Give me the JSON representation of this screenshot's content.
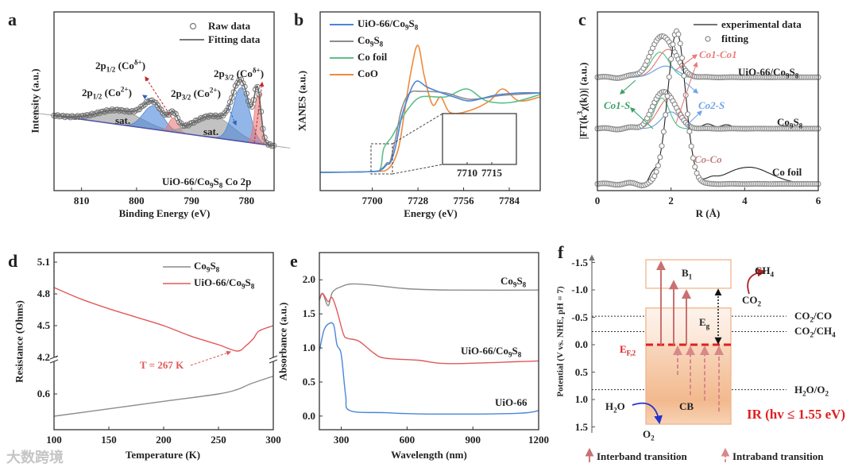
{
  "watermark": "大数跨境",
  "colors": {
    "blue": "#4a86d8",
    "gray": "#8c8c8c",
    "green": "#5cbf8a",
    "orange": "#ee8a3c",
    "red": "#e05a5a",
    "fit_gray": "#777777"
  },
  "chart_data": [
    {
      "panel": "a",
      "type": "line",
      "xlabel": "Binding Energy (eV)",
      "ylabel": "Intensity (a.u.)",
      "xlim": [
        815,
        775
      ],
      "ylim": [
        0,
        1
      ],
      "xticks": [
        "810",
        "800",
        "790",
        "780"
      ],
      "xtick_values": [
        810,
        800,
        790,
        780
      ],
      "legend": [
        "Raw data",
        "Fitting data"
      ],
      "annotation": "UiO-66/Co_{9}S_{8}  Co 2p",
      "baseline": [
        [
          815,
          0.42
        ],
        [
          775,
          0.25
        ]
      ],
      "peaks": [
        {
          "label": "sat.",
          "center": 803,
          "height": 0.08,
          "width": 4,
          "color": "#9a9a9a"
        },
        {
          "label": "2p_{1/2} (Co^{2+})",
          "center": 797,
          "height": 0.13,
          "width": 1.8,
          "color": "#4a86d8"
        },
        {
          "label": "2p_{1/2} (Co^{δ+})",
          "center": 793.3,
          "height": 0.08,
          "width": 0.8,
          "color": "#e87c7c"
        },
        {
          "label": "sat.",
          "center": 786,
          "height": 0.12,
          "width": 3.5,
          "color": "#9a9a9a"
        },
        {
          "label": "2p_{3/2} (Co^{2+})",
          "center": 781,
          "height": 0.3,
          "width": 1.5,
          "color": "#4a86d8"
        },
        {
          "label": "2p_{3/2} (Co^{δ+})",
          "center": 778,
          "height": 0.27,
          "width": 0.6,
          "color": "#e87c7c"
        }
      ]
    },
    {
      "panel": "b",
      "type": "line",
      "xlabel": "Energy (eV)",
      "ylabel": "XANES (a.u.)",
      "xlim": [
        7668,
        7803
      ],
      "ylim": [
        -0.23,
        2.02
      ],
      "xticks": [
        "7700",
        "7728",
        "7756",
        "7784"
      ],
      "xtick_values": [
        7700,
        7728,
        7756,
        7784
      ],
      "inset": {
        "xlim": [
          7705,
          7720
        ],
        "xticks": [
          "7710",
          "7715"
        ],
        "xtick_values": [
          7710,
          7715
        ]
      },
      "series": [
        {
          "name": "UiO-66/Co_{9}S_{8}",
          "color": "#4a86d8",
          "points": [
            [
              7668,
              0
            ],
            [
              7700,
              0.01
            ],
            [
              7706,
              0.04
            ],
            [
              7709,
              0.1
            ],
            [
              7711,
              0.12
            ],
            [
              7714,
              0.3
            ],
            [
              7718,
              0.7
            ],
            [
              7722,
              0.95
            ],
            [
              7725,
              1.1
            ],
            [
              7728,
              1.15
            ],
            [
              7733,
              1.08
            ],
            [
              7740,
              1.02
            ],
            [
              7750,
              0.95
            ],
            [
              7760,
              0.9
            ],
            [
              7775,
              0.97
            ],
            [
              7790,
              1.0
            ],
            [
              7803,
              1.0
            ]
          ]
        },
        {
          "name": "Co_{9}S_{8}",
          "color": "#8c8c8c",
          "points": [
            [
              7668,
              0
            ],
            [
              7700,
              0.01
            ],
            [
              7706,
              0.05
            ],
            [
              7709,
              0.12
            ],
            [
              7711,
              0.14
            ],
            [
              7714,
              0.4
            ],
            [
              7718,
              0.8
            ],
            [
              7723,
              1.0
            ],
            [
              7730,
              1.02
            ],
            [
              7745,
              1.0
            ],
            [
              7760,
              0.92
            ],
            [
              7780,
              0.97
            ],
            [
              7803,
              1.0
            ]
          ]
        },
        {
          "name": "Co foil",
          "color": "#5cbf8a",
          "points": [
            [
              7668,
              0
            ],
            [
              7700,
              0.01
            ],
            [
              7705,
              0.05
            ],
            [
              7707,
              0.3
            ],
            [
              7712,
              0.45
            ],
            [
              7716,
              0.6
            ],
            [
              7722,
              0.8
            ],
            [
              7730,
              0.95
            ],
            [
              7745,
              0.95
            ],
            [
              7758,
              1.05
            ],
            [
              7770,
              0.9
            ],
            [
              7785,
              0.88
            ],
            [
              7803,
              0.98
            ]
          ]
        },
        {
          "name": "CoO",
          "color": "#ee8a3c",
          "points": [
            [
              7668,
              0
            ],
            [
              7700,
              0.01
            ],
            [
              7710,
              0.05
            ],
            [
              7716,
              0.3
            ],
            [
              7720,
              0.8
            ],
            [
              7724,
              1.3
            ],
            [
              7728,
              1.6
            ],
            [
              7732,
              1.2
            ],
            [
              7737,
              0.85
            ],
            [
              7742,
              0.95
            ],
            [
              7748,
              0.75
            ],
            [
              7760,
              0.78
            ],
            [
              7772,
              0.9
            ],
            [
              7780,
              1.05
            ],
            [
              7790,
              0.9
            ],
            [
              7803,
              0.95
            ]
          ]
        }
      ]
    },
    {
      "panel": "c",
      "type": "line",
      "xlabel": "R (Å)",
      "ylabel": "|FT(k^{3}χ(k))| (a.u.)",
      "xlim": [
        0,
        6
      ],
      "ylim": [
        0,
        3.2
      ],
      "xticks": [
        "0",
        "2",
        "4",
        "6"
      ],
      "xtick_values": [
        0,
        2,
        4,
        6
      ],
      "legend": [
        "experimental data",
        "fitting"
      ],
      "path_labels": {
        "co1_co1": "Co1-Co1",
        "co1_s": "Co1-S",
        "co2_s": "Co2-S",
        "co_co": "Co-Co"
      },
      "samples": [
        {
          "name": "UiO-66/Co_{9}S_{8}",
          "offset": 2.03,
          "peak": {
            "center": 1.78,
            "height": 0.74,
            "width": 0.32
          },
          "components": [
            {
              "path": "Co1-S",
              "color": "#5cbf8a",
              "center": 1.7,
              "height": 0.45,
              "width": 0.25
            },
            {
              "path": "Co1-Co1",
              "color": "#e87c7c",
              "center": 1.92,
              "height": 0.5,
              "width": 0.3
            },
            {
              "path": "Co2-S",
              "color": "#6fa3e8",
              "center": 1.85,
              "height": 0.2,
              "width": 0.3
            }
          ],
          "extra": [
            [
              3.6,
              0.03,
              0.2
            ]
          ]
        },
        {
          "name": "Co_{9}S_{8}",
          "offset": 1.11,
          "peak": {
            "center": 1.82,
            "height": 0.67,
            "width": 0.3
          },
          "components": [
            {
              "path": "Co1-S",
              "color": "#5cbf8a",
              "center": 1.75,
              "height": 0.55,
              "width": 0.2
            },
            {
              "path": "Co1-Co1",
              "color": "#e87c7c",
              "center": 1.95,
              "height": 0.55,
              "width": 0.3
            },
            {
              "path": "Co2-S",
              "color": "#6fa3e8",
              "center": 2.0,
              "height": 0.3,
              "width": 0.25
            }
          ],
          "extra": [
            [
              3.0,
              0.08,
              0.15
            ],
            [
              3.5,
              0.07,
              0.15
            ],
            [
              5.1,
              0.05,
              0.2
            ]
          ]
        },
        {
          "name": "Co foil",
          "offset": 0.12,
          "peak": {
            "center": 2.15,
            "height": 2.73,
            "width": 0.24
          },
          "components": [],
          "extra": [
            [
              1.5,
              0.15,
              0.1
            ],
            [
              3.1,
              0.06,
              0.15
            ],
            [
              4.1,
              0.3,
              0.6
            ]
          ]
        }
      ]
    },
    {
      "panel": "d",
      "type": "line",
      "xlabel": "Temperature (K)",
      "ylabel": "Resistance (Ohms)",
      "xlim": [
        100,
        300
      ],
      "xticks": [
        "100",
        "150",
        "200",
        "250",
        "300"
      ],
      "xtick_values": [
        100,
        150,
        200,
        250,
        300
      ],
      "yticks": [
        "5.1",
        "4.8",
        "4.5",
        "4.2",
        "0.6"
      ],
      "ytick_values": [
        5.1,
        4.8,
        4.5,
        4.2,
        0.6
      ],
      "axis_break": true,
      "annotation": "T = 267 K",
      "series": [
        {
          "name": "Co_{9}S_{8}",
          "color": "#8c8c8c",
          "points": [
            [
              100,
              0.45
            ],
            [
              150,
              0.5
            ],
            [
              200,
              0.55
            ],
            [
              250,
              0.6
            ],
            [
              267,
              0.63
            ],
            [
              280,
              0.67
            ],
            [
              300,
              0.72
            ]
          ]
        },
        {
          "name": "UiO-66/Co_{9}S_{8}",
          "color": "#e05a5a",
          "points": [
            [
              100,
              4.86
            ],
            [
              125,
              4.75
            ],
            [
              150,
              4.66
            ],
            [
              175,
              4.58
            ],
            [
              200,
              4.5
            ],
            [
              225,
              4.4
            ],
            [
              250,
              4.32
            ],
            [
              267,
              4.26
            ],
            [
              275,
              4.31
            ],
            [
              282,
              4.38
            ],
            [
              287,
              4.45
            ],
            [
              300,
              4.5
            ]
          ]
        }
      ]
    },
    {
      "panel": "e",
      "type": "line",
      "xlabel": "Wavelength (nm)",
      "ylabel": "Absorbance (a.u.)",
      "xlim": [
        200,
        1200
      ],
      "ylim": [
        -0.2,
        2.4
      ],
      "xticks": [
        "300",
        "600",
        "900",
        "1200"
      ],
      "xtick_values": [
        300,
        600,
        900,
        1200
      ],
      "yticks": [
        "2.0",
        "1.5",
        "1.0",
        "0.5",
        "0.0"
      ],
      "ytick_values": [
        2.0,
        1.5,
        1.0,
        0.5,
        0.0
      ],
      "series": [
        {
          "name": "Co_{9}S_{8}",
          "color": "#8c8c8c",
          "points": [
            [
              200,
              1.72
            ],
            [
              215,
              1.8
            ],
            [
              240,
              1.62
            ],
            [
              260,
              1.82
            ],
            [
              300,
              1.9
            ],
            [
              350,
              1.94
            ],
            [
              450,
              1.92
            ],
            [
              600,
              1.87
            ],
            [
              800,
              1.85
            ],
            [
              1200,
              1.85
            ]
          ]
        },
        {
          "name": "UiO-66/Co_{9}S_{8}",
          "color": "#e05a5a",
          "points": [
            [
              200,
              1.7
            ],
            [
              215,
              1.8
            ],
            [
              240,
              1.68
            ],
            [
              258,
              1.74
            ],
            [
              280,
              1.55
            ],
            [
              310,
              1.2
            ],
            [
              330,
              1.14
            ],
            [
              380,
              1.1
            ],
            [
              450,
              0.92
            ],
            [
              500,
              0.85
            ],
            [
              650,
              0.82
            ],
            [
              800,
              0.77
            ],
            [
              1200,
              0.81
            ]
          ]
        },
        {
          "name": "UiO-66",
          "color": "#4a86d8",
          "points": [
            [
              200,
              0.95
            ],
            [
              220,
              1.25
            ],
            [
              240,
              1.35
            ],
            [
              265,
              1.34
            ],
            [
              280,
              1.05
            ],
            [
              300,
              0.9
            ],
            [
              320,
              0.3
            ],
            [
              340,
              0.08
            ],
            [
              500,
              0.05
            ],
            [
              700,
              0.03
            ],
            [
              1100,
              0.04
            ],
            [
              1200,
              0.08
            ]
          ]
        }
      ]
    },
    {
      "panel": "f",
      "type": "diagram",
      "ylabel": "Potential (V vs. NHE, pH = 7)",
      "ylim": [
        -1.55,
        1.55
      ],
      "yticks": [
        "-1.5",
        "-1.0",
        "-0.5",
        "0.0",
        "0.5",
        "1.0",
        "1.5"
      ],
      "ytick_values": [
        -1.5,
        -1.0,
        -0.5,
        0.0,
        0.5,
        1.0,
        1.5
      ],
      "bands": {
        "B1": {
          "label": "B_{1}",
          "top": -1.55,
          "bottom": -1.03
        },
        "CB": {
          "label": "CB",
          "top": -0.67,
          "bottom": 1.45
        }
      },
      "fermi_level": {
        "label": "E_{F,2}",
        "value": 0.0
      },
      "gap_label": "E_{g}",
      "redox_levels": [
        {
          "label": "CO_{2}/CO",
          "value": -0.52
        },
        {
          "label": "CO_{2}/CH_{4}",
          "value": -0.24
        },
        {
          "label": "H_{2}O/O_{2}",
          "value": 0.82
        }
      ],
      "species": {
        "ch4": "CH_{4}",
        "co2": "CO_{2}",
        "h2o": "H_{2}O",
        "o2": "O_{2}"
      },
      "ir_label": "IR (hv ≤ 1.55 eV)",
      "interband_arrow_tops": [
        -1.5,
        -1.15,
        -0.98
      ],
      "intraband_arrow_bottoms": [
        0.55,
        0.92,
        1.02,
        1.22
      ],
      "legend": [
        "Interband transition",
        "Intraband transition"
      ]
    }
  ]
}
